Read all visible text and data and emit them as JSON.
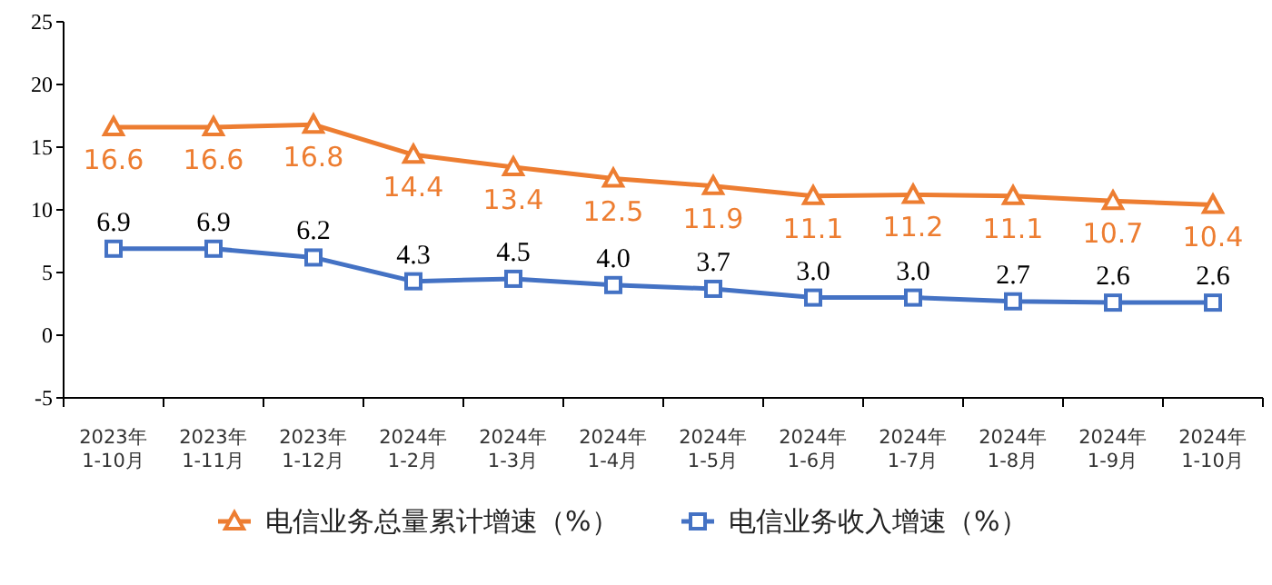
{
  "chart_data": {
    "type": "line",
    "categories": [
      "2023年\n1-10月",
      "2023年\n1-11月",
      "2023年\n1-12月",
      "2024年\n1-2月",
      "2024年\n1-3月",
      "2024年\n1-4月",
      "2024年\n1-5月",
      "2024年\n1-6月",
      "2024年\n1-7月",
      "2024年\n1-8月",
      "2024年\n1-9月",
      "2024年\n1-10月"
    ],
    "series": [
      {
        "name": "电信业务总量累计增速（%）",
        "color": "#ed7d31",
        "marker": "triangle",
        "values": [
          16.6,
          16.6,
          16.8,
          14.4,
          13.4,
          12.5,
          11.9,
          11.1,
          11.2,
          11.1,
          10.7,
          10.4
        ],
        "value_labels": [
          "16.6",
          "16.6",
          "16.8",
          "14.4",
          "13.4",
          "12.5",
          "11.9",
          "11.1",
          "11.2",
          "11.1",
          "10.7",
          "10.4"
        ]
      },
      {
        "name": "电信业务收入增速（%）",
        "color": "#4472c4",
        "marker": "square",
        "values": [
          6.9,
          6.9,
          6.2,
          4.3,
          4.5,
          4.0,
          3.7,
          3.0,
          3.0,
          2.7,
          2.6,
          2.6
        ],
        "value_labels": [
          "6.9",
          "6.9",
          "6.2",
          "4.3",
          "4.5",
          "4.0",
          "3.7",
          "3.0",
          "3.0",
          "2.7",
          "2.6",
          "2.6"
        ]
      }
    ],
    "ylim": [
      -5,
      25
    ],
    "yticks": [
      -5,
      0,
      5,
      10,
      15,
      20,
      25
    ],
    "legend": "bottom",
    "grid": false
  }
}
